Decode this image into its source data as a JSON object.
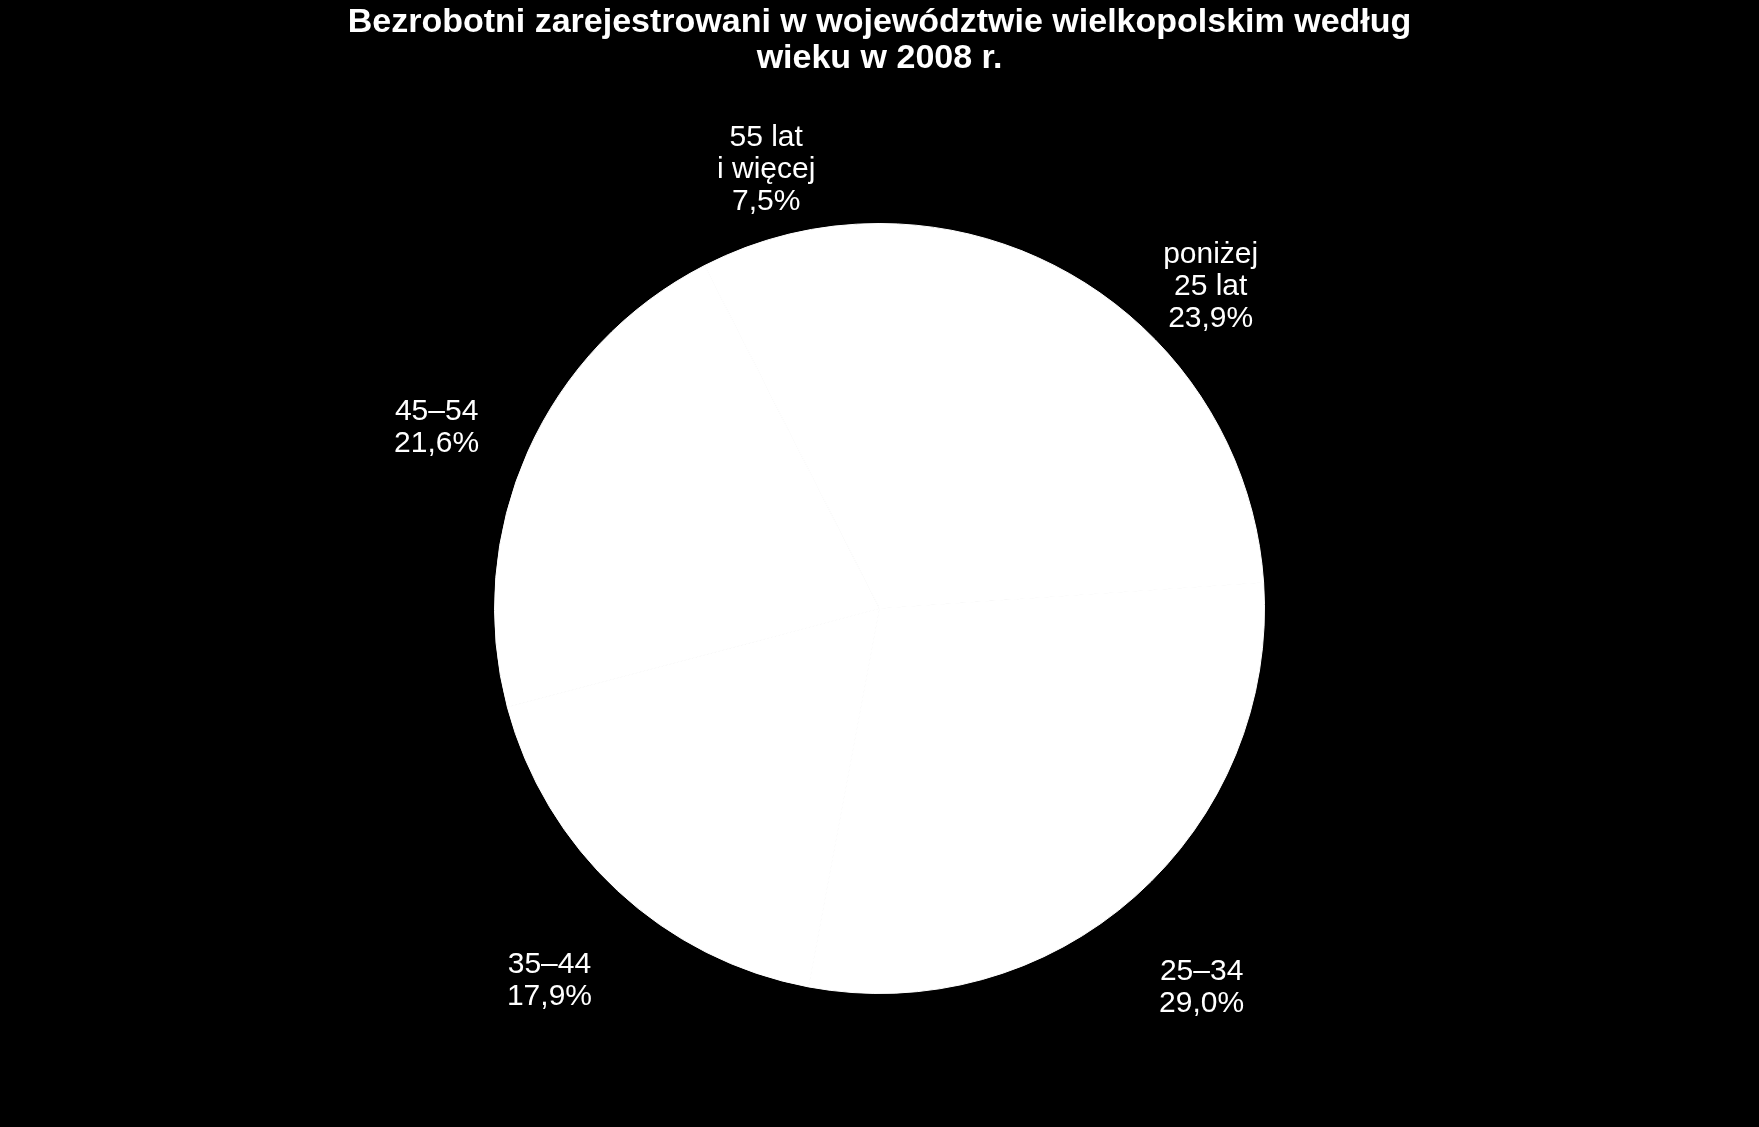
{
  "chart_data": {
    "type": "pie",
    "title": "Bezrobotni zarejestrowani  w województwie wielkopolskim według\nwieku w 2008 r.",
    "categories": [
      "poniżej\n25 lat",
      "25–34",
      "35–44",
      "45–54",
      "55 lat\ni więcej"
    ],
    "values": [
      23.9,
      29.0,
      17.9,
      21.6,
      7.5
    ],
    "value_labels": [
      "23,9%",
      "29,0%",
      "17,9%",
      "21,6%",
      "7,5%"
    ],
    "colors": [
      "#ffffff",
      "#ffffff",
      "#ffffff",
      "#ffffff",
      "#ffffff"
    ],
    "legend": false
  }
}
